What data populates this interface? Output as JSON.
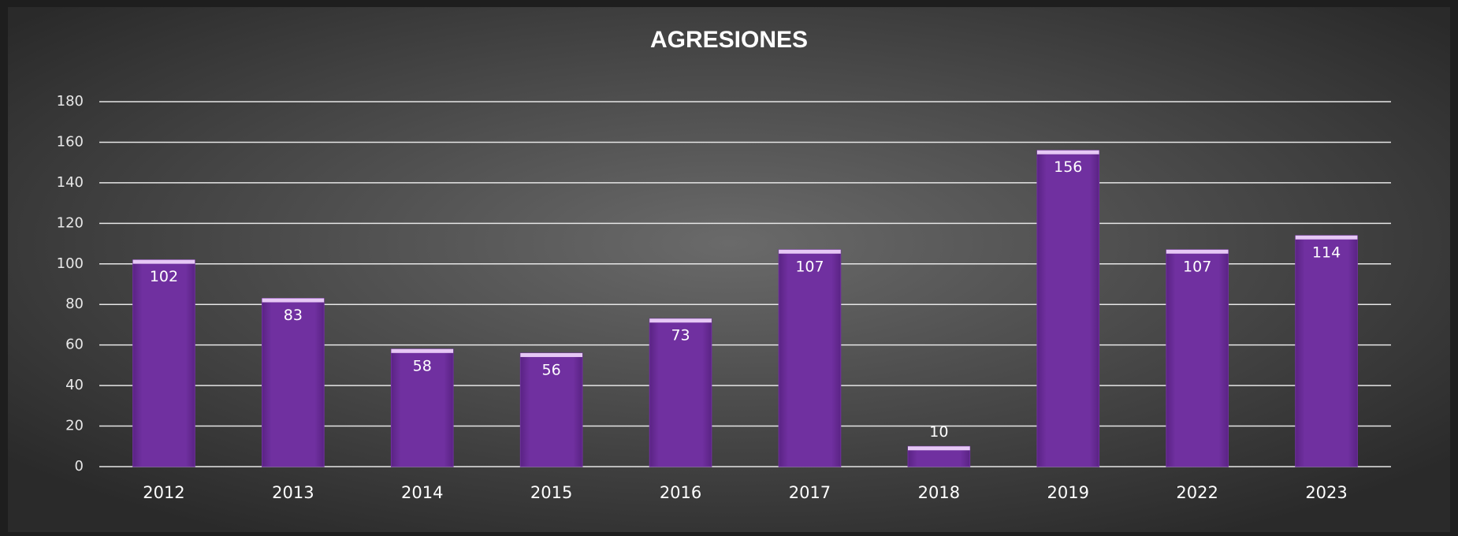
{
  "chart_data": {
    "type": "bar",
    "title": "AGRESIONES",
    "categories": [
      "2012",
      "2013",
      "2014",
      "2015",
      "2016",
      "2017",
      "2018",
      "2019",
      "2022",
      "2023"
    ],
    "values": [
      102,
      83,
      58,
      56,
      73,
      107,
      10,
      156,
      107,
      114
    ],
    "color": "#7030a0",
    "ylim": [
      0,
      180
    ],
    "yticks": [
      0,
      20,
      40,
      60,
      80,
      100,
      120,
      140,
      160,
      180
    ],
    "grid": true
  }
}
